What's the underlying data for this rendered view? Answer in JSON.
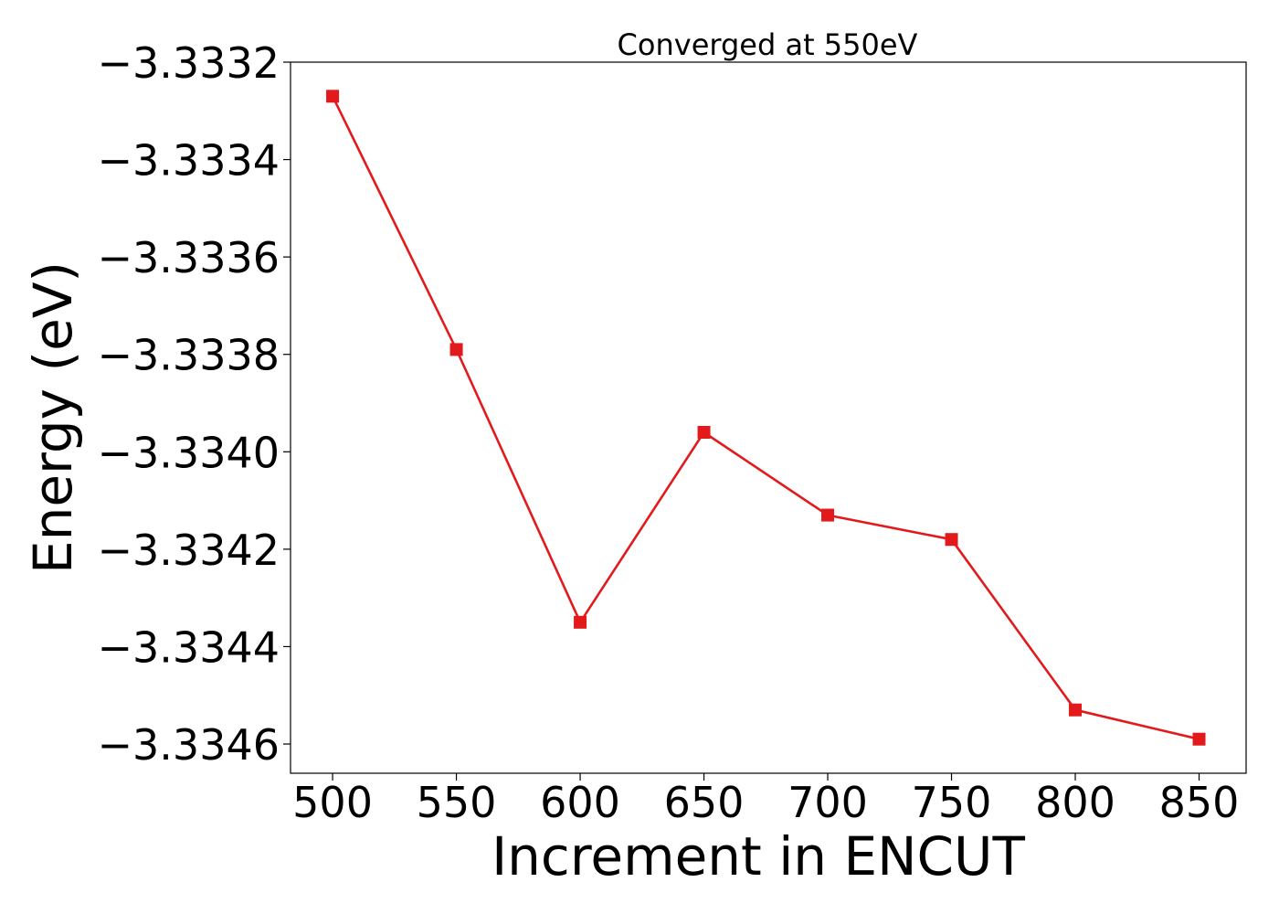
{
  "chart_data": {
    "type": "line",
    "title": "Converged at 550eV",
    "xlabel": "Increment in ENCUT",
    "ylabel": "Energy (eV)",
    "x": [
      500,
      550,
      600,
      650,
      700,
      750,
      800,
      850
    ],
    "series": [
      {
        "values": [
          -3.33327,
          -3.33379,
          -3.33435,
          -3.33396,
          -3.33413,
          -3.33418,
          -3.33453,
          -3.33459
        ],
        "color": "#e31a1c",
        "marker": "square"
      }
    ],
    "xlim": [
      483,
      869
    ],
    "ylim": [
      -3.33466,
      -3.3332
    ],
    "xticks": [
      500,
      550,
      600,
      650,
      700,
      750,
      800,
      850
    ],
    "yticks": [
      -3.3332,
      -3.3334,
      -3.3336,
      -3.3338,
      -3.334,
      -3.3342,
      -3.3344,
      -3.3346
    ],
    "xtick_labels": [
      "500",
      "550",
      "600",
      "650",
      "700",
      "750",
      "800",
      "850"
    ],
    "ytick_labels": [
      "−3.3332",
      "−3.3334",
      "−3.3336",
      "−3.3338",
      "−3.3340",
      "−3.3342",
      "−3.3344",
      "−3.3346"
    ],
    "grid": false,
    "legend": "none"
  }
}
